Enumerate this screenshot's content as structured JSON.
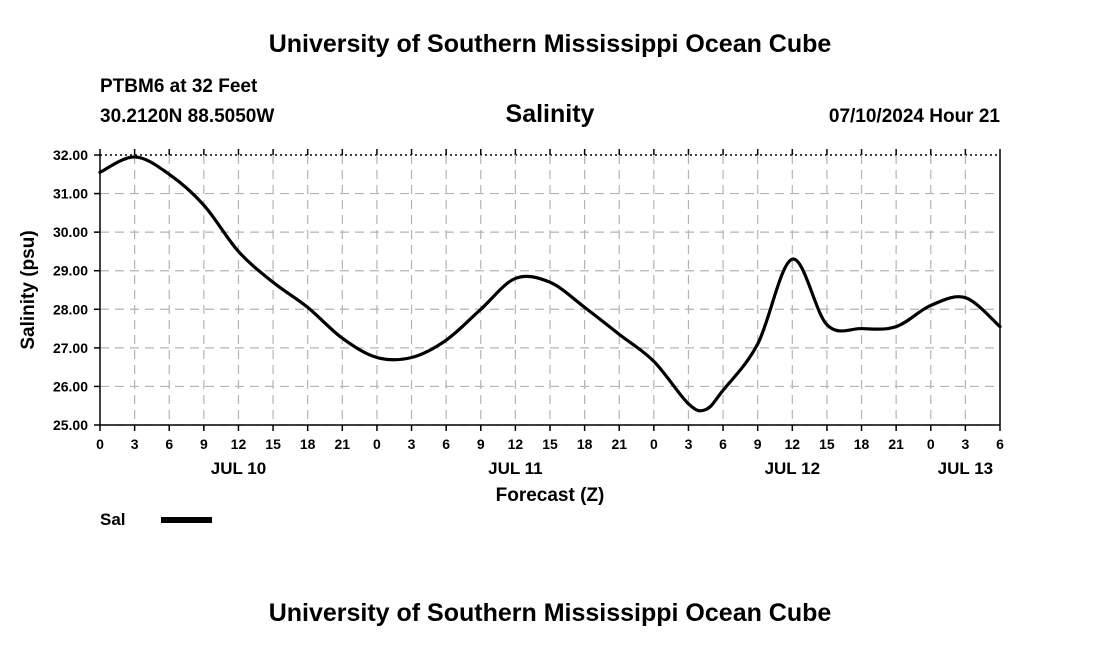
{
  "header": {
    "title_top": "University of Southern Mississippi Ocean Cube",
    "station": "PTBM6 at 32 Feet",
    "location": "30.2120N  88.5050W",
    "chart_title": "Salinity",
    "timestamp": "07/10/2024 Hour 21",
    "title_bottom": "University of Southern Mississippi Ocean Cube"
  },
  "legend": {
    "label": "Sal",
    "color": "#000000"
  },
  "chart_data": {
    "type": "line",
    "title": "Salinity",
    "xlabel": "Forecast (Z)",
    "ylabel": "Salinity (psu)",
    "ylim": [
      25.0,
      32.0
    ],
    "xlim": [
      0,
      78
    ],
    "grid": true,
    "y_ticks": [
      "25.00",
      "26.00",
      "27.00",
      "28.00",
      "29.00",
      "30.00",
      "31.00",
      "32.00"
    ],
    "x_tick_labels": [
      "0",
      "3",
      "6",
      "9",
      "12",
      "15",
      "18",
      "21",
      "0",
      "3",
      "6",
      "9",
      "12",
      "15",
      "18",
      "21",
      "0",
      "3",
      "6",
      "9",
      "12",
      "15",
      "18",
      "21",
      "0",
      "3",
      "6"
    ],
    "date_labels": [
      {
        "label": "JUL 10",
        "hour": 12
      },
      {
        "label": "JUL 11",
        "hour": 36
      },
      {
        "label": "JUL 12",
        "hour": 60
      },
      {
        "label": "JUL 13",
        "hour": 75
      }
    ],
    "series": [
      {
        "name": "Sal",
        "x": [
          0,
          3,
          6,
          9,
          12,
          15,
          18,
          21,
          24,
          27,
          30,
          33,
          36,
          39,
          42,
          45,
          48,
          51,
          52.5,
          54,
          57,
          60,
          63,
          66,
          69,
          72,
          75,
          78
        ],
        "values": [
          31.55,
          31.95,
          31.5,
          30.7,
          29.5,
          28.7,
          28.05,
          27.25,
          26.75,
          26.75,
          27.2,
          28.0,
          28.8,
          28.7,
          28.05,
          27.35,
          26.65,
          25.55,
          25.4,
          25.9,
          27.1,
          29.3,
          27.6,
          27.5,
          27.55,
          28.1,
          28.3,
          27.55
        ]
      }
    ]
  }
}
